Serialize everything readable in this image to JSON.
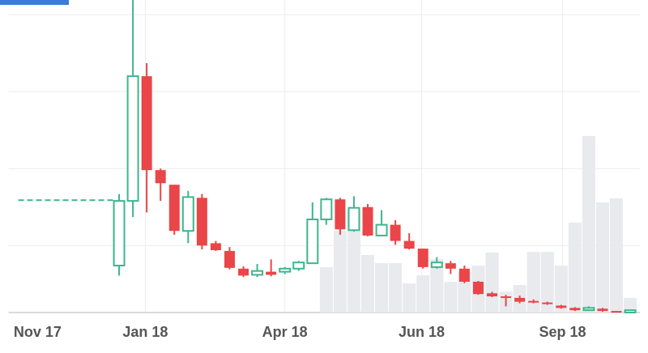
{
  "chart_data": {
    "type": "candlestick",
    "x": [
      8,
      9,
      10,
      11,
      12,
      13,
      14,
      15,
      16,
      17,
      18,
      19,
      20,
      21,
      22,
      23,
      24,
      25,
      26,
      27,
      28,
      29,
      30,
      31,
      32,
      33,
      34,
      35,
      36,
      37,
      38,
      39,
      40,
      41,
      42,
      43,
      44,
      45
    ],
    "open": [
      0.74,
      1.58,
      3.2,
      1.98,
      1.79,
      1.19,
      1.62,
      1.03,
      0.93,
      0.7,
      0.62,
      0.66,
      0.66,
      0.7,
      0.77,
      1.34,
      1.6,
      1.2,
      1.5,
      1.13,
      1.27,
      1.06,
      0.96,
      0.72,
      0.77,
      0.7,
      0.53,
      0.38,
      0.34,
      0.32,
      0.28,
      0.26,
      0.22,
      0.19,
      0.16,
      0.18,
      0.15,
      0.13
    ],
    "high": [
      1.67,
      4.19,
      3.37,
      2.0,
      1.79,
      1.71,
      1.67,
      1.06,
      0.98,
      0.73,
      0.76,
      0.82,
      0.72,
      0.8,
      1.56,
      1.62,
      1.62,
      1.64,
      1.54,
      1.46,
      1.33,
      1.16,
      0.96,
      0.85,
      0.8,
      0.74,
      0.54,
      0.4,
      0.36,
      0.35,
      0.3,
      0.27,
      0.23,
      0.2,
      0.21,
      0.19,
      0.15,
      0.16
    ],
    "low": [
      0.61,
      1.37,
      1.43,
      1.58,
      1.14,
      1.03,
      0.95,
      0.93,
      0.69,
      0.59,
      0.59,
      0.6,
      0.63,
      0.67,
      0.77,
      1.27,
      1.14,
      1.18,
      1.12,
      1.12,
      1.01,
      0.95,
      0.7,
      0.7,
      0.63,
      0.51,
      0.36,
      0.33,
      0.21,
      0.25,
      0.25,
      0.23,
      0.18,
      0.15,
      0.15,
      0.14,
      0.13,
      0.13
    ],
    "close": [
      1.58,
      3.2,
      1.98,
      1.81,
      1.19,
      1.63,
      1.0,
      0.94,
      0.71,
      0.61,
      0.67,
      0.62,
      0.7,
      0.78,
      1.34,
      1.6,
      1.21,
      1.49,
      1.13,
      1.27,
      1.06,
      0.96,
      0.72,
      0.78,
      0.7,
      0.53,
      0.37,
      0.34,
      0.32,
      0.27,
      0.26,
      0.24,
      0.19,
      0.16,
      0.19,
      0.15,
      0.14,
      0.16
    ],
    "volume": [
      null,
      null,
      null,
      null,
      null,
      null,
      null,
      null,
      null,
      null,
      null,
      null,
      null,
      null,
      null,
      14.5,
      26.2,
      33.2,
      18.4,
      15.8,
      15.8,
      9.3,
      11.9,
      17.1,
      9.8,
      13.0,
      15.0,
      19.2,
      6.7,
      8.8,
      19.4,
      19.4,
      15.0,
      28.8,
      56.5,
      35.2,
      36.5,
      4.7
    ],
    "up_color": "#3db68d",
    "down_color": "#ea4548",
    "volume_color": "#e8eaee",
    "reference_line": {
      "x": [
        0.7,
        7.6
      ],
      "value": 1.59
    },
    "xlim": [
      0,
      45.7
    ],
    "xticks": [
      {
        "value": 2.1,
        "label": "Nov 17"
      },
      {
        "value": 9.9,
        "label": "Jan 18"
      },
      {
        "value": 20.0,
        "label": "Apr 18"
      },
      {
        "value": 29.9,
        "label": "Jun 18"
      },
      {
        "value": 40.1,
        "label": "Sep 18"
      }
    ],
    "ylim": [
      0.13,
      4.19
    ],
    "yticks": [
      1,
      2,
      3,
      4
    ],
    "y2lim": [
      0,
      100
    ],
    "grid": true
  }
}
